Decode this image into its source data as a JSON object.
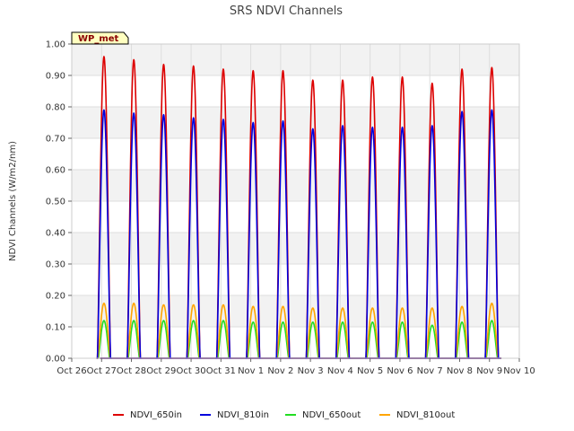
{
  "chart_data": {
    "type": "line",
    "title": "SRS NDVI Channels",
    "ylabel": "NDVI Channels (W/m2/nm)",
    "xlabel": "",
    "tag": "WP_met",
    "ylim": [
      0.0,
      1.0
    ],
    "yticks": [
      0.0,
      0.1,
      0.2,
      0.3,
      0.4,
      0.5,
      0.6,
      0.7,
      0.8,
      0.9,
      1.0
    ],
    "ytick_labels": [
      "0.00",
      "0.10",
      "0.20",
      "0.30",
      "0.40",
      "0.50",
      "0.60",
      "0.70",
      "0.80",
      "0.90",
      "1.00"
    ],
    "xlim_days": [
      0,
      15
    ],
    "xticks_days": [
      0,
      1,
      2,
      3,
      4,
      5,
      6,
      7,
      8,
      9,
      10,
      11,
      12,
      13,
      14,
      15
    ],
    "xtick_labels": [
      "Oct 26",
      "Oct 27",
      "Oct 28",
      "Oct 29",
      "Oct 30",
      "Oct 31",
      "Nov 1",
      "Nov 2",
      "Nov 3",
      "Nov 4",
      "Nov 5",
      "Nov 6",
      "Nov 7",
      "Nov 8",
      "Nov 9",
      "Nov 10"
    ],
    "grid": true,
    "legend_position": "bottom",
    "peak_days": [
      "Oct 27",
      "Oct 28",
      "Oct 29",
      "Oct 30",
      "Oct 31",
      "Nov 1",
      "Nov 2",
      "Nov 3",
      "Nov 4",
      "Nov 5",
      "Nov 6",
      "Nov 7",
      "Nov 8",
      "Nov 9"
    ],
    "series": [
      {
        "name": "NDVI_650in",
        "color": "#dd0000",
        "peaks": [
          0.96,
          0.95,
          0.935,
          0.93,
          0.92,
          0.915,
          0.915,
          0.885,
          0.885,
          0.895,
          0.895,
          0.875,
          0.92,
          0.925
        ]
      },
      {
        "name": "NDVI_810in",
        "color": "#0000dd",
        "peaks": [
          0.79,
          0.78,
          0.775,
          0.765,
          0.76,
          0.75,
          0.755,
          0.73,
          0.74,
          0.735,
          0.735,
          0.74,
          0.785,
          0.79
        ]
      },
      {
        "name": "NDVI_650out",
        "color": "#22dd22",
        "peaks": [
          0.12,
          0.12,
          0.12,
          0.12,
          0.12,
          0.115,
          0.115,
          0.115,
          0.115,
          0.115,
          0.115,
          0.105,
          0.115,
          0.12
        ]
      },
      {
        "name": "NDVI_810out",
        "color": "#ffa500",
        "peaks": [
          0.175,
          0.175,
          0.17,
          0.17,
          0.17,
          0.165,
          0.165,
          0.16,
          0.16,
          0.16,
          0.16,
          0.16,
          0.165,
          0.175
        ]
      }
    ]
  }
}
